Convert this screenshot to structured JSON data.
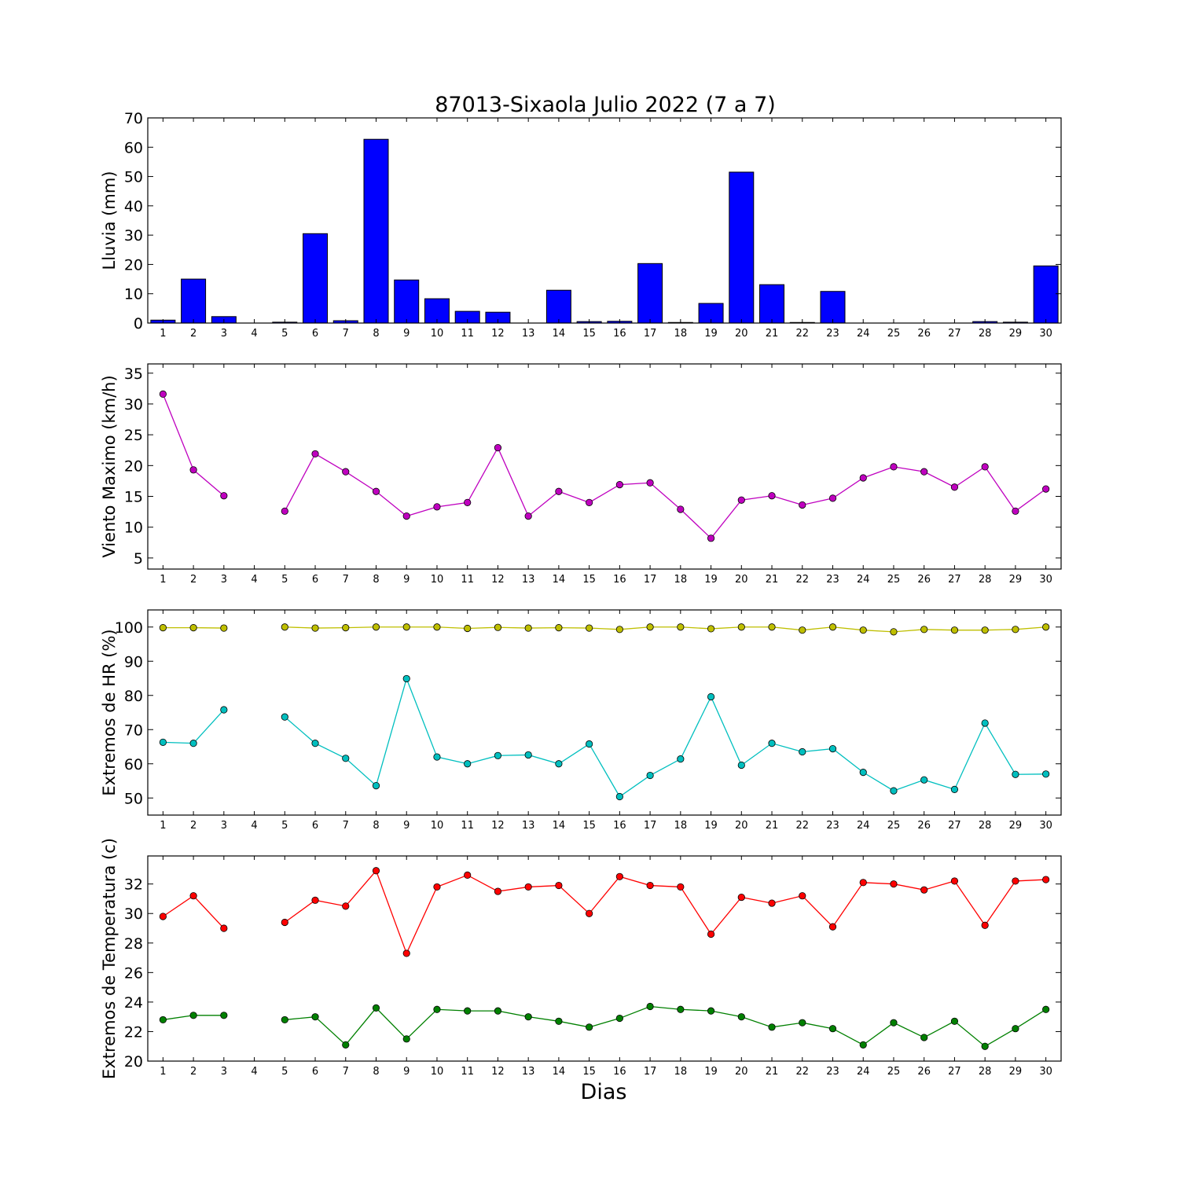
{
  "figure": {
    "title": "87013-Sixaola Julio 2022  (7 a 7)",
    "xlabel": "Dias"
  },
  "chart_data": [
    {
      "type": "bar",
      "ylabel": "Lluvia (mm)",
      "categories": [
        1,
        2,
        3,
        4,
        5,
        6,
        7,
        8,
        9,
        10,
        11,
        12,
        13,
        14,
        15,
        16,
        17,
        18,
        19,
        20,
        21,
        22,
        23,
        24,
        25,
        26,
        27,
        28,
        29,
        30
      ],
      "values": [
        1.0,
        15.0,
        2.2,
        0,
        0.3,
        30.5,
        0.8,
        62.7,
        14.7,
        8.3,
        4.0,
        3.7,
        0,
        11.2,
        0.5,
        0.6,
        20.3,
        0.2,
        6.7,
        51.5,
        13.1,
        0.2,
        10.8,
        0,
        0,
        0,
        0,
        0.5,
        0.3,
        19.5
      ],
      "ylim": [
        0,
        70
      ],
      "yticks": [
        0,
        10,
        20,
        30,
        40,
        50,
        60,
        70
      ],
      "color": "#0000ff"
    },
    {
      "type": "line",
      "ylabel": "Viento Maximo (km/h)",
      "x": [
        1,
        2,
        3,
        4,
        5,
        6,
        7,
        8,
        9,
        10,
        11,
        12,
        13,
        14,
        15,
        16,
        17,
        18,
        19,
        20,
        21,
        22,
        23,
        24,
        25,
        26,
        27,
        28,
        29,
        30
      ],
      "series": [
        {
          "color": "#bf00bf",
          "values": [
            31.6,
            19.3,
            15.1,
            null,
            12.6,
            21.9,
            19.0,
            15.8,
            11.8,
            13.3,
            14.0,
            22.9,
            11.8,
            15.8,
            14.0,
            16.9,
            17.2,
            12.9,
            8.2,
            14.4,
            15.1,
            13.6,
            14.7,
            18.0,
            19.8,
            19.0,
            16.5,
            19.8,
            12.6,
            16.2
          ]
        }
      ],
      "ylim": [
        3.2,
        36.5
      ],
      "yticks": [
        5,
        10,
        15,
        20,
        25,
        30,
        35
      ]
    },
    {
      "type": "line",
      "ylabel": "Extremos de HR (%)",
      "x": [
        1,
        2,
        3,
        4,
        5,
        6,
        7,
        8,
        9,
        10,
        11,
        12,
        13,
        14,
        15,
        16,
        17,
        18,
        19,
        20,
        21,
        22,
        23,
        24,
        25,
        26,
        27,
        28,
        29,
        30
      ],
      "series": [
        {
          "color": "#bfbf00",
          "values": [
            99.8,
            99.8,
            99.7,
            null,
            100,
            99.7,
            99.8,
            100,
            100,
            100,
            99.6,
            99.9,
            99.7,
            99.8,
            99.7,
            99.3,
            100,
            100,
            99.5,
            100,
            100,
            99.1,
            100,
            99.1,
            98.6,
            99.3,
            99.1,
            99.1,
            99.3,
            100
          ]
        },
        {
          "color": "#00bfbf",
          "values": [
            66.3,
            66.0,
            75.8,
            null,
            73.7,
            66.0,
            61.6,
            53.6,
            84.9,
            62.0,
            60.0,
            62.4,
            62.6,
            60.0,
            65.8,
            50.4,
            56.6,
            61.4,
            79.6,
            59.6,
            66.0,
            63.5,
            64.4,
            57.5,
            52.1,
            55.3,
            52.5,
            71.9,
            56.9,
            57.0
          ]
        }
      ],
      "ylim": [
        45,
        105
      ],
      "yticks": [
        50,
        60,
        70,
        80,
        90,
        100
      ]
    },
    {
      "type": "line",
      "ylabel": "Extremos de Temperatura (c)",
      "x": [
        1,
        2,
        3,
        4,
        5,
        6,
        7,
        8,
        9,
        10,
        11,
        12,
        13,
        14,
        15,
        16,
        17,
        18,
        19,
        20,
        21,
        22,
        23,
        24,
        25,
        26,
        27,
        28,
        29,
        30
      ],
      "series": [
        {
          "color": "#ff0000",
          "values": [
            29.8,
            31.2,
            29.0,
            null,
            29.4,
            30.9,
            30.5,
            32.9,
            27.3,
            31.8,
            32.6,
            31.5,
            31.8,
            31.9,
            30.0,
            32.5,
            31.9,
            31.8,
            28.6,
            31.1,
            30.7,
            31.2,
            29.1,
            32.1,
            32.0,
            31.6,
            32.2,
            29.2,
            32.2,
            32.3
          ]
        },
        {
          "color": "#008000",
          "values": [
            22.8,
            23.1,
            23.1,
            null,
            22.8,
            23.0,
            21.1,
            23.6,
            21.5,
            23.5,
            23.4,
            23.4,
            23.0,
            22.7,
            22.3,
            22.9,
            23.7,
            23.5,
            23.4,
            23.0,
            22.3,
            22.6,
            22.2,
            21.1,
            22.6,
            21.6,
            22.7,
            21.0,
            22.2,
            23.5
          ]
        }
      ],
      "ylim": [
        20,
        33.9
      ],
      "yticks": [
        20,
        22,
        24,
        26,
        28,
        30,
        32
      ]
    }
  ]
}
